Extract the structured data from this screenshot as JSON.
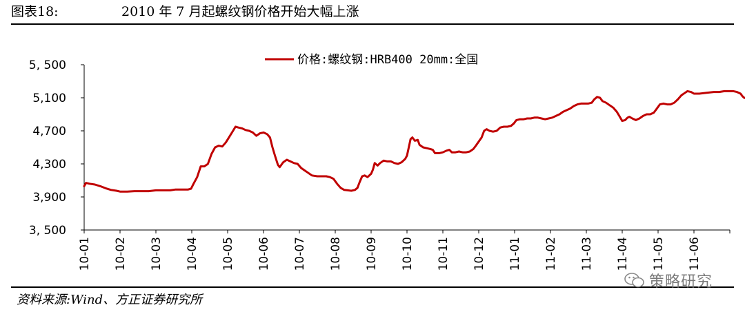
{
  "figure": {
    "label": "图表18:",
    "title": "2010 年 7 月起螺纹钢价格开始大幅上涨",
    "source": "资料来源:Wind、方正证券研究所"
  },
  "watermark": {
    "text": "策略研究",
    "icon": "wechat-icon"
  },
  "chart_data": {
    "type": "line",
    "title": "",
    "xlabel": "",
    "ylabel": "",
    "ylim": [
      3500,
      5500
    ],
    "yticks": [
      3500,
      3900,
      4300,
      4700,
      5100,
      5500
    ],
    "ytick_labels": [
      "3, 500",
      "3,900",
      "4,300",
      "4,700",
      "5,100",
      "5, 500"
    ],
    "xticks": [
      "10-01",
      "10-02",
      "10-03",
      "10-04",
      "10-05",
      "10-06",
      "10-07",
      "10-08",
      "10-09",
      "10-10",
      "10-11",
      "10-12",
      "11-01",
      "11-02",
      "11-03",
      "11-04",
      "11-05",
      "11-06"
    ],
    "grid": false,
    "legend_position": "top-center",
    "series": [
      {
        "name": "价格:螺纹钢:HRB400 20mm:全国",
        "color": "#c00000",
        "points": [
          [
            0.0,
            4030
          ],
          [
            0.05,
            4070
          ],
          [
            0.15,
            4060
          ],
          [
            0.3,
            4050
          ],
          [
            0.45,
            4030
          ],
          [
            0.6,
            4005
          ],
          [
            0.75,
            3985
          ],
          [
            0.9,
            3975
          ],
          [
            1.0,
            3965
          ],
          [
            1.2,
            3965
          ],
          [
            1.4,
            3970
          ],
          [
            1.6,
            3970
          ],
          [
            1.8,
            3970
          ],
          [
            2.0,
            3980
          ],
          [
            2.2,
            3980
          ],
          [
            2.4,
            3980
          ],
          [
            2.55,
            3990
          ],
          [
            2.7,
            3990
          ],
          [
            2.9,
            3990
          ],
          [
            2.98,
            4000
          ],
          [
            3.05,
            4060
          ],
          [
            3.15,
            4140
          ],
          [
            3.25,
            4270
          ],
          [
            3.35,
            4270
          ],
          [
            3.45,
            4300
          ],
          [
            3.55,
            4420
          ],
          [
            3.65,
            4500
          ],
          [
            3.75,
            4520
          ],
          [
            3.85,
            4510
          ],
          [
            3.95,
            4560
          ],
          [
            4.05,
            4630
          ],
          [
            4.15,
            4700
          ],
          [
            4.22,
            4750
          ],
          [
            4.3,
            4740
          ],
          [
            4.4,
            4730
          ],
          [
            4.5,
            4710
          ],
          [
            4.6,
            4700
          ],
          [
            4.7,
            4680
          ],
          [
            4.8,
            4640
          ],
          [
            4.9,
            4670
          ],
          [
            5.0,
            4680
          ],
          [
            5.1,
            4660
          ],
          [
            5.18,
            4620
          ],
          [
            5.25,
            4500
          ],
          [
            5.32,
            4400
          ],
          [
            5.4,
            4290
          ],
          [
            5.45,
            4260
          ],
          [
            5.55,
            4320
          ],
          [
            5.65,
            4350
          ],
          [
            5.75,
            4330
          ],
          [
            5.85,
            4310
          ],
          [
            5.95,
            4300
          ],
          [
            6.05,
            4250
          ],
          [
            6.15,
            4220
          ],
          [
            6.25,
            4190
          ],
          [
            6.35,
            4160
          ],
          [
            6.5,
            4150
          ],
          [
            6.6,
            4150
          ],
          [
            6.75,
            4150
          ],
          [
            6.85,
            4140
          ],
          [
            6.95,
            4120
          ],
          [
            7.05,
            4060
          ],
          [
            7.15,
            4010
          ],
          [
            7.25,
            3985
          ],
          [
            7.35,
            3980
          ],
          [
            7.45,
            3975
          ],
          [
            7.55,
            3985
          ],
          [
            7.62,
            4010
          ],
          [
            7.68,
            4080
          ],
          [
            7.75,
            4150
          ],
          [
            7.82,
            4160
          ],
          [
            7.9,
            4140
          ],
          [
            8.0,
            4180
          ],
          [
            8.05,
            4230
          ],
          [
            8.1,
            4310
          ],
          [
            8.18,
            4280
          ],
          [
            8.25,
            4310
          ],
          [
            8.35,
            4340
          ],
          [
            8.45,
            4330
          ],
          [
            8.55,
            4330
          ],
          [
            8.65,
            4310
          ],
          [
            8.75,
            4300
          ],
          [
            8.85,
            4320
          ],
          [
            8.95,
            4360
          ],
          [
            9.0,
            4400
          ],
          [
            9.05,
            4500
          ],
          [
            9.1,
            4600
          ],
          [
            9.15,
            4620
          ],
          [
            9.22,
            4580
          ],
          [
            9.3,
            4590
          ],
          [
            9.35,
            4530
          ],
          [
            9.45,
            4500
          ],
          [
            9.55,
            4490
          ],
          [
            9.65,
            4480
          ],
          [
            9.72,
            4470
          ],
          [
            9.78,
            4430
          ],
          [
            9.9,
            4430
          ],
          [
            10.0,
            4440
          ],
          [
            10.1,
            4460
          ],
          [
            10.18,
            4470
          ],
          [
            10.25,
            4440
          ],
          [
            10.35,
            4440
          ],
          [
            10.45,
            4450
          ],
          [
            10.55,
            4440
          ],
          [
            10.65,
            4440
          ],
          [
            10.75,
            4450
          ],
          [
            10.85,
            4480
          ],
          [
            10.92,
            4520
          ],
          [
            11.0,
            4570
          ],
          [
            11.08,
            4620
          ],
          [
            11.15,
            4700
          ],
          [
            11.22,
            4720
          ],
          [
            11.3,
            4700
          ],
          [
            11.4,
            4690
          ],
          [
            11.5,
            4700
          ],
          [
            11.6,
            4740
          ],
          [
            11.7,
            4750
          ],
          [
            11.8,
            4750
          ],
          [
            11.9,
            4760
          ],
          [
            11.98,
            4790
          ],
          [
            12.05,
            4830
          ],
          [
            12.15,
            4840
          ],
          [
            12.25,
            4840
          ],
          [
            12.35,
            4850
          ],
          [
            12.45,
            4850
          ],
          [
            12.55,
            4860
          ],
          [
            12.65,
            4860
          ],
          [
            12.75,
            4850
          ],
          [
            12.85,
            4840
          ],
          [
            12.95,
            4850
          ],
          [
            13.05,
            4860
          ],
          [
            13.15,
            4880
          ],
          [
            13.25,
            4900
          ],
          [
            13.35,
            4930
          ],
          [
            13.45,
            4950
          ],
          [
            13.55,
            4970
          ],
          [
            13.65,
            5000
          ],
          [
            13.75,
            5020
          ],
          [
            13.85,
            5030
          ],
          [
            13.95,
            5030
          ],
          [
            14.05,
            5030
          ],
          [
            14.15,
            5040
          ],
          [
            14.22,
            5080
          ],
          [
            14.3,
            5110
          ],
          [
            14.38,
            5100
          ],
          [
            14.45,
            5060
          ],
          [
            14.55,
            5040
          ],
          [
            14.65,
            5010
          ],
          [
            14.75,
            4980
          ],
          [
            14.85,
            4930
          ],
          [
            14.92,
            4880
          ],
          [
            15.0,
            4820
          ],
          [
            15.08,
            4830
          ],
          [
            15.15,
            4860
          ],
          [
            15.2,
            4870
          ],
          [
            15.28,
            4850
          ],
          [
            15.38,
            4830
          ],
          [
            15.48,
            4850
          ],
          [
            15.58,
            4880
          ],
          [
            15.68,
            4900
          ],
          [
            15.78,
            4900
          ],
          [
            15.88,
            4920
          ],
          [
            15.95,
            4960
          ],
          [
            16.05,
            5020
          ],
          [
            16.15,
            5030
          ],
          [
            16.25,
            5020
          ],
          [
            16.35,
            5020
          ],
          [
            16.45,
            5040
          ],
          [
            16.55,
            5080
          ],
          [
            16.65,
            5130
          ],
          [
            16.75,
            5160
          ],
          [
            16.82,
            5180
          ],
          [
            16.92,
            5170
          ],
          [
            17.0,
            5150
          ],
          [
            17.15,
            5150
          ],
          [
            17.35,
            5160
          ],
          [
            17.55,
            5170
          ],
          [
            17.7,
            5170
          ],
          [
            17.85,
            5180
          ],
          [
            17.98,
            5180
          ],
          [
            18.1,
            5180
          ],
          [
            18.2,
            5170
          ],
          [
            18.3,
            5150
          ],
          [
            18.35,
            5120
          ],
          [
            18.4,
            5100
          ],
          [
            18.48,
            5090
          ],
          [
            18.55,
            5080
          ],
          [
            18.6,
            5080
          ]
        ]
      }
    ]
  }
}
